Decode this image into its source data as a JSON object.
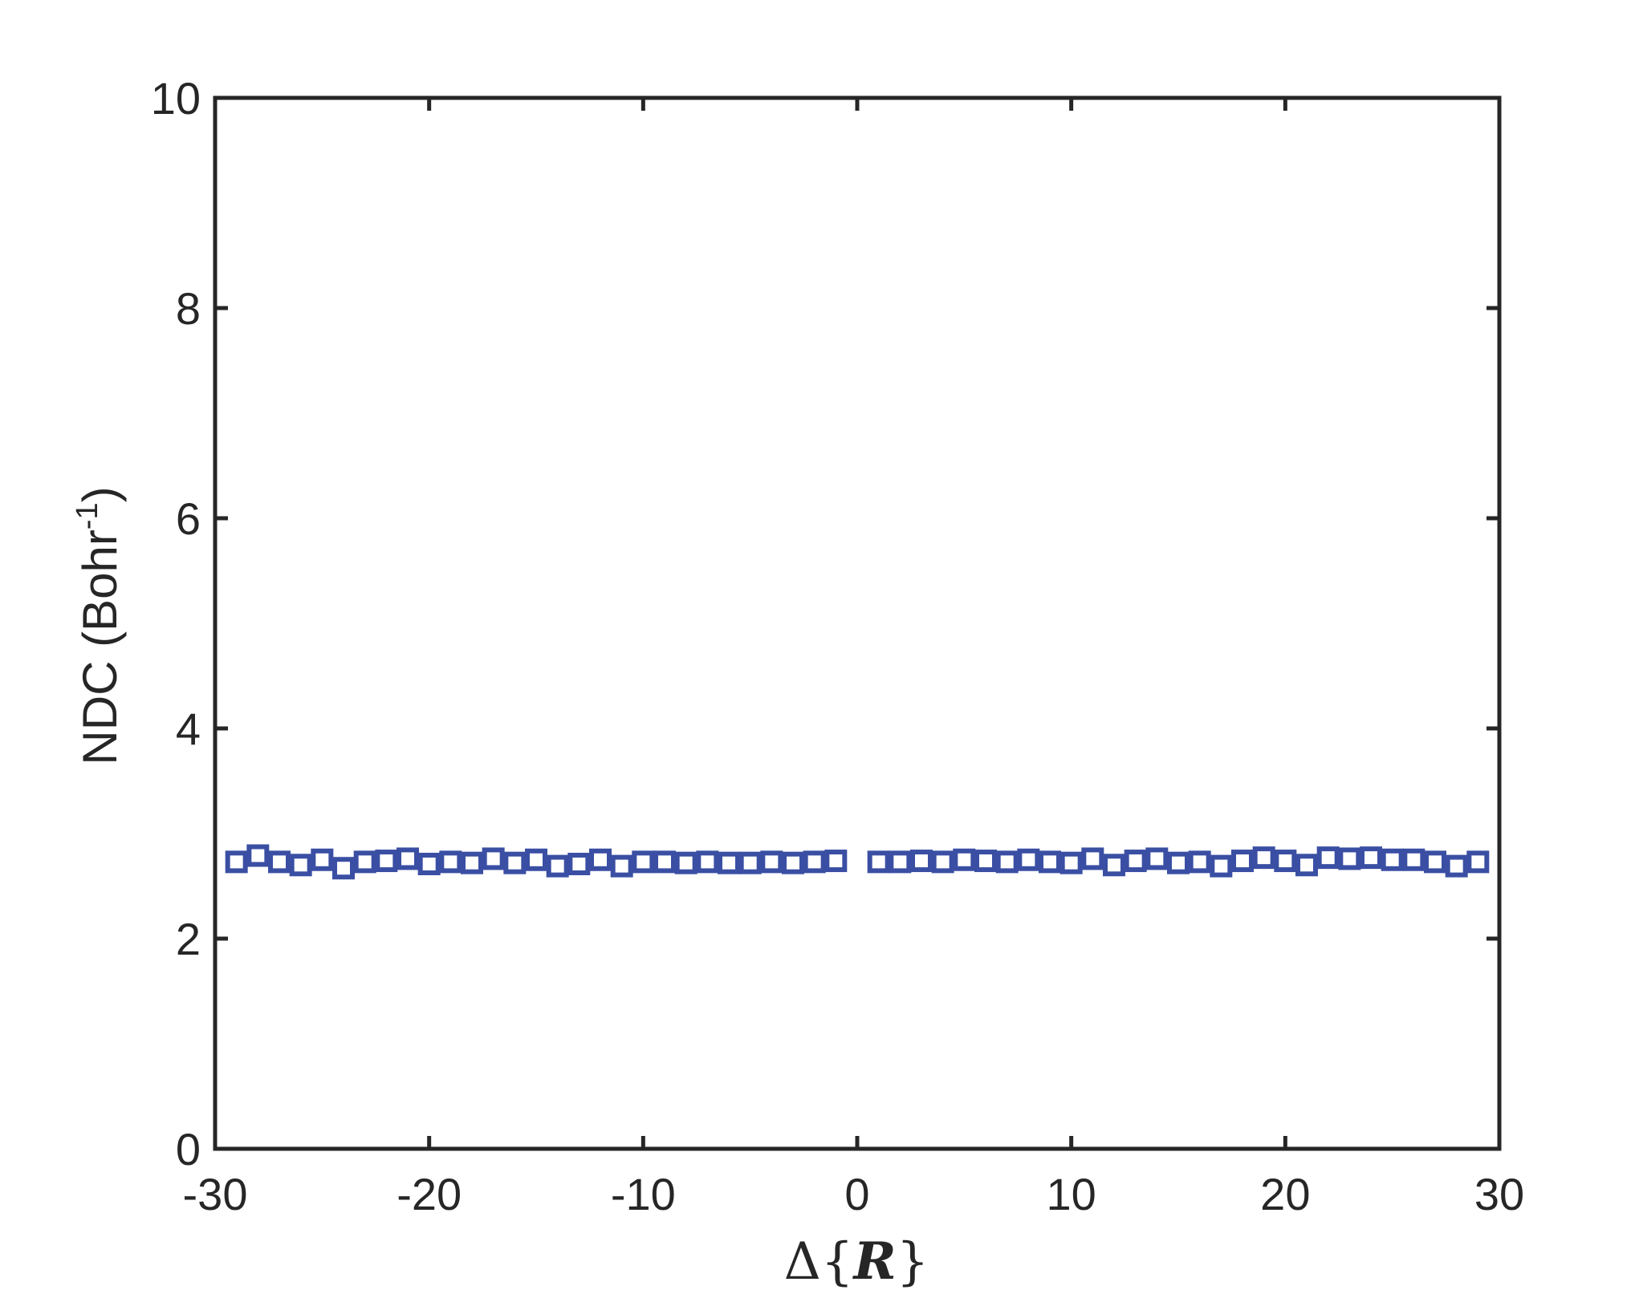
{
  "chart_data": {
    "type": "scatter",
    "marker": "square-open",
    "color": "#3a4fa3",
    "axis_color": "#262626",
    "xlim": [
      -30,
      30
    ],
    "ylim": [
      0,
      10
    ],
    "xticks": [
      -30,
      -20,
      -10,
      0,
      10,
      20,
      30
    ],
    "yticks": [
      0,
      2,
      4,
      6,
      8,
      10
    ],
    "xtick_labels": [
      "-30",
      "-20",
      "-10",
      "0",
      "10",
      "20",
      "30"
    ],
    "ytick_labels": [
      "0",
      "2",
      "4",
      "6",
      "8",
      "10"
    ],
    "xlabel_prefix": "Δ{",
    "xlabel_var": "R",
    "xlabel_suffix": "}",
    "ylabel_main": "NDC (Bohr",
    "ylabel_sup": "-1",
    "ylabel_end": ")",
    "grid": false,
    "series": [
      {
        "x": [
          -29,
          -28,
          -27,
          -26,
          -25,
          -24,
          -23,
          -22,
          -21,
          -20,
          -19,
          -18,
          -17,
          -16,
          -15,
          -14,
          -13,
          -12,
          -11,
          -10,
          -9,
          -8,
          -7,
          -6,
          -5,
          -4,
          -3,
          -2,
          -1,
          1,
          2,
          3,
          4,
          5,
          6,
          7,
          8,
          9,
          10,
          11,
          12,
          13,
          14,
          15,
          16,
          17,
          18,
          19,
          20,
          21,
          22,
          23,
          24,
          25,
          26,
          27,
          28,
          29
        ],
        "y": [
          2.73,
          2.79,
          2.73,
          2.7,
          2.75,
          2.67,
          2.73,
          2.74,
          2.76,
          2.71,
          2.73,
          2.72,
          2.76,
          2.72,
          2.75,
          2.69,
          2.71,
          2.75,
          2.69,
          2.73,
          2.73,
          2.72,
          2.73,
          2.72,
          2.72,
          2.73,
          2.72,
          2.73,
          2.74,
          2.73,
          2.73,
          2.74,
          2.73,
          2.75,
          2.74,
          2.73,
          2.75,
          2.73,
          2.72,
          2.76,
          2.7,
          2.74,
          2.76,
          2.72,
          2.73,
          2.69,
          2.74,
          2.77,
          2.74,
          2.7,
          2.77,
          2.76,
          2.77,
          2.75,
          2.75,
          2.73,
          2.69,
          2.73
        ]
      }
    ]
  }
}
